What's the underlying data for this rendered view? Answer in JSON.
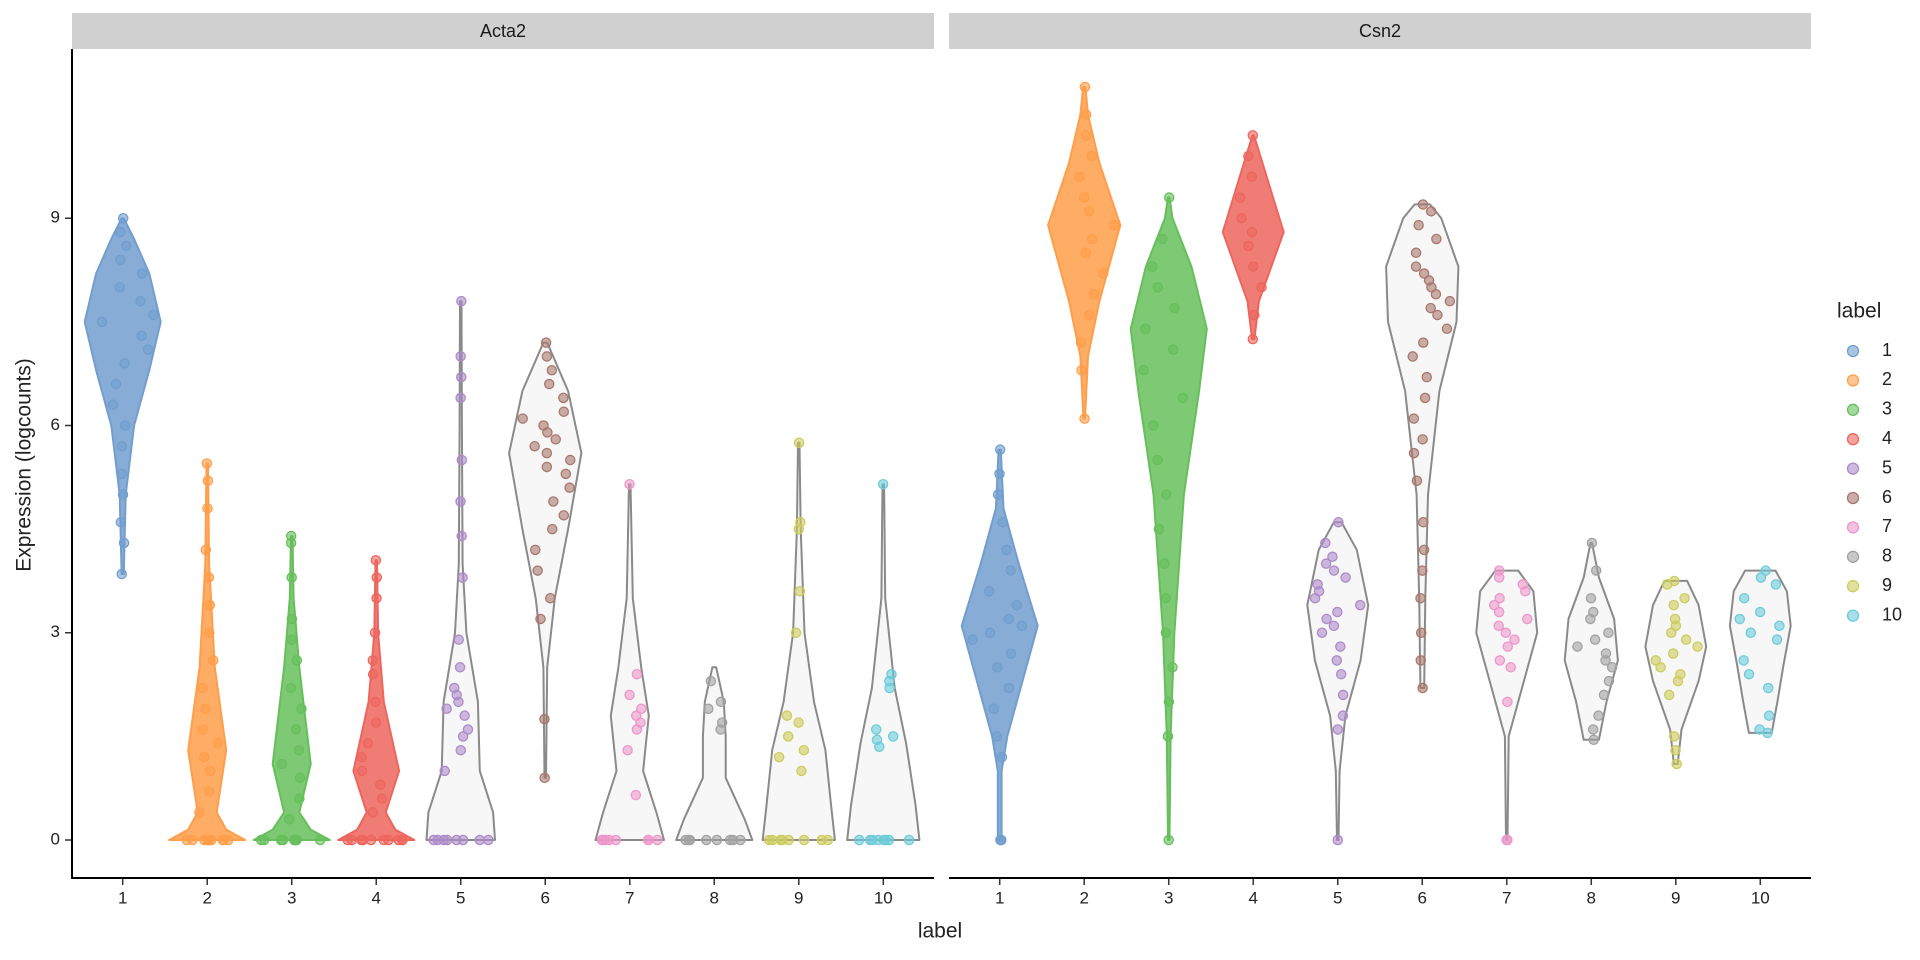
{
  "chart_data": {
    "type": "violin",
    "x_label": "label",
    "y_label": "Expression (logcounts)",
    "legend_title": "label",
    "legend": "right",
    "categories": [
      "1",
      "2",
      "3",
      "4",
      "5",
      "6",
      "7",
      "8",
      "9",
      "10"
    ],
    "colors": [
      "#729ECE",
      "#FF9E4A",
      "#67BF5C",
      "#ED665D",
      "#AD8BC9",
      "#A8786E",
      "#ED97CA",
      "#A2A2A2",
      "#CDCC5D",
      "#6DCCDA"
    ],
    "ylim": [
      -0.55,
      11.45
    ],
    "yticks": [
      0,
      3,
      6,
      9
    ],
    "facets": [
      {
        "title": "Acta2",
        "groups": [
          {
            "filled": true,
            "profile_y": [
              3.85,
              5,
              6,
              6.8,
              7.5,
              8.2,
              8.7,
              9.0
            ],
            "profile_w": [
              0.03,
              0.08,
              0.3,
              0.7,
              1,
              0.7,
              0.3,
              0.03
            ],
            "points": [
              3.85,
              4.3,
              4.6,
              5.0,
              5.3,
              5.7,
              6.0,
              6.3,
              6.6,
              6.9,
              7.1,
              7.3,
              7.5,
              7.6,
              7.8,
              8.0,
              8.2,
              8.4,
              8.6,
              8.8,
              9.0
            ]
          },
          {
            "filled": true,
            "profile_y": [
              0,
              0.15,
              0.4,
              1.3,
              2.5,
              4,
              5.45
            ],
            "profile_w": [
              1,
              0.5,
              0.25,
              0.5,
              0.2,
              0.05,
              0.02
            ],
            "points": [
              0,
              0,
              0,
              0,
              0,
              0,
              0,
              0,
              0,
              0,
              0.4,
              0.7,
              1.0,
              1.2,
              1.4,
              1.6,
              1.9,
              2.2,
              2.6,
              3.0,
              3.4,
              3.8,
              4.2,
              4.8,
              5.2,
              5.45
            ]
          },
          {
            "filled": true,
            "profile_y": [
              0,
              0.15,
              0.4,
              1.1,
              2.5,
              3.5,
              4.4
            ],
            "profile_w": [
              1,
              0.5,
              0.2,
              0.5,
              0.2,
              0.05,
              0.02
            ],
            "points": [
              0,
              0,
              0,
              0,
              0,
              0,
              0,
              0,
              0,
              0,
              0.3,
              0.6,
              0.9,
              1.1,
              1.3,
              1.6,
              1.9,
              2.2,
              2.6,
              2.9,
              3.2,
              3.8,
              4.3,
              4.4
            ]
          },
          {
            "filled": true,
            "profile_y": [
              0,
              0.15,
              0.4,
              1.0,
              2,
              3,
              4.05
            ],
            "profile_w": [
              1,
              0.5,
              0.25,
              0.6,
              0.2,
              0.05,
              0.02
            ],
            "points": [
              0,
              0,
              0,
              0,
              0,
              0,
              0,
              0,
              0,
              0,
              0.4,
              0.6,
              0.8,
              1.0,
              1.2,
              1.4,
              1.7,
              2.0,
              2.4,
              2.6,
              3.0,
              3.5,
              3.8,
              4.05
            ]
          },
          {
            "filled": false,
            "profile_y": [
              0,
              0.4,
              1,
              2,
              3,
              4,
              6,
              7.8
            ],
            "profile_w": [
              0.9,
              0.85,
              0.5,
              0.45,
              0.15,
              0.05,
              0.03,
              0.02
            ],
            "points": [
              0,
              0,
              0,
              0,
              0,
              0,
              0,
              0,
              1.0,
              1.3,
              1.5,
              1.6,
              1.8,
              1.9,
              2.0,
              2.1,
              2.2,
              2.5,
              2.9,
              3.8,
              4.4,
              4.9,
              5.5,
              6.4,
              6.7,
              7.0,
              7.8
            ]
          },
          {
            "filled": false,
            "profile_y": [
              0.9,
              2.5,
              3.5,
              4.5,
              5.6,
              6.5,
              7.2
            ],
            "profile_w": [
              0.02,
              0.05,
              0.25,
              0.6,
              0.95,
              0.6,
              0.05
            ],
            "points": [
              0.9,
              1.75,
              3.2,
              3.5,
              3.9,
              4.2,
              4.5,
              4.7,
              4.9,
              5.1,
              5.3,
              5.4,
              5.5,
              5.6,
              5.7,
              5.8,
              5.9,
              6.0,
              6.1,
              6.2,
              6.4,
              6.6,
              6.8,
              7.0,
              7.2
            ]
          },
          {
            "filled": false,
            "profile_y": [
              0,
              0.4,
              1.0,
              1.8,
              2.5,
              3.5,
              5.15
            ],
            "profile_w": [
              0.9,
              0.7,
              0.35,
              0.5,
              0.3,
              0.08,
              0.02
            ],
            "points": [
              0,
              0,
              0,
              0,
              0,
              0,
              0,
              0,
              0.65,
              1.3,
              1.6,
              1.7,
              1.8,
              1.9,
              2.1,
              2.4,
              5.15
            ]
          },
          {
            "filled": false,
            "profile_y": [
              0,
              0.3,
              0.9,
              1.5,
              2,
              2.5
            ],
            "profile_w": [
              1,
              0.8,
              0.3,
              0.3,
              0.25,
              0.05
            ],
            "points": [
              0,
              0,
              0,
              0,
              0,
              0,
              0,
              0,
              1.6,
              1.7,
              1.9,
              2.0,
              2.3
            ]
          },
          {
            "filled": false,
            "profile_y": [
              0,
              0.5,
              1.3,
              2,
              3,
              4.5,
              5.75
            ],
            "profile_w": [
              0.95,
              0.85,
              0.7,
              0.4,
              0.15,
              0.05,
              0.02
            ],
            "points": [
              0,
              0,
              0,
              0,
              0,
              0,
              0,
              0,
              1.0,
              1.2,
              1.3,
              1.5,
              1.7,
              1.8,
              3.0,
              3.6,
              4.5,
              4.6,
              5.75
            ]
          },
          {
            "filled": false,
            "profile_y": [
              0,
              0.5,
              1.4,
              2.2,
              3.5,
              5.15
            ],
            "profile_w": [
              0.95,
              0.85,
              0.6,
              0.3,
              0.05,
              0.02
            ],
            "points": [
              0,
              0,
              0,
              0,
              0,
              0,
              0,
              0,
              1.35,
              1.45,
              1.5,
              1.6,
              2.2,
              2.3,
              2.4,
              5.15
            ]
          }
        ]
      },
      {
        "title": "Csn2",
        "groups": [
          {
            "filled": true,
            "profile_y": [
              0,
              1,
              1.5,
              2.3,
              3.1,
              4,
              4.8,
              5.65
            ],
            "profile_w": [
              0.05,
              0.05,
              0.2,
              0.6,
              1,
              0.5,
              0.1,
              0.03
            ],
            "points": [
              0,
              0,
              0,
              1.2,
              1.5,
              1.9,
              2.2,
              2.5,
              2.7,
              2.9,
              3.0,
              3.1,
              3.2,
              3.4,
              3.6,
              3.9,
              4.2,
              4.6,
              5.0,
              5.3,
              5.65
            ]
          },
          {
            "filled": true,
            "profile_y": [
              6.1,
              7,
              7.8,
              8.9,
              9.8,
              10.5,
              10.9
            ],
            "profile_w": [
              0.02,
              0.1,
              0.4,
              0.95,
              0.4,
              0.1,
              0.03
            ],
            "points": [
              6.1,
              6.8,
              7.2,
              7.6,
              7.9,
              8.2,
              8.5,
              8.7,
              8.9,
              9.1,
              9.3,
              9.6,
              9.9,
              10.2,
              10.5,
              10.9
            ]
          },
          {
            "filled": true,
            "profile_y": [
              0,
              1.5,
              3,
              5,
              6.5,
              7.4,
              8.3,
              9,
              9.3
            ],
            "profile_w": [
              0.02,
              0.05,
              0.15,
              0.4,
              0.8,
              1,
              0.6,
              0.1,
              0.02
            ],
            "points": [
              0,
              1.5,
              2.0,
              2.5,
              3.0,
              3.5,
              4.0,
              4.5,
              5.0,
              5.5,
              6.0,
              6.4,
              6.8,
              7.1,
              7.4,
              7.7,
              8.0,
              8.3,
              8.7,
              9.3
            ]
          },
          {
            "filled": true,
            "profile_y": [
              7.25,
              7.8,
              8.8,
              9.7,
              10.2
            ],
            "profile_w": [
              0.03,
              0.15,
              0.8,
              0.3,
              0.02
            ],
            "points": [
              7.25,
              7.6,
              8.0,
              8.3,
              8.6,
              8.8,
              9.0,
              9.3,
              9.6,
              9.9,
              10.2
            ]
          },
          {
            "filled": false,
            "profile_y": [
              0,
              1,
              1.8,
              2.6,
              3.4,
              4.2,
              4.6
            ],
            "profile_w": [
              0.02,
              0.05,
              0.2,
              0.6,
              0.8,
              0.5,
              0.1
            ],
            "points": [
              0,
              1.6,
              1.8,
              2.1,
              2.4,
              2.6,
              2.8,
              3.0,
              3.1,
              3.2,
              3.3,
              3.4,
              3.5,
              3.6,
              3.7,
              3.8,
              3.9,
              4.0,
              4.1,
              4.3,
              4.6
            ]
          },
          {
            "filled": false,
            "profile_y": [
              2.2,
              3.5,
              5,
              6.5,
              7.5,
              8.3,
              9.0,
              9.2
            ],
            "profile_w": [
              0.05,
              0.08,
              0.15,
              0.45,
              0.9,
              0.95,
              0.5,
              0.2
            ],
            "points": [
              2.2,
              2.6,
              3.0,
              3.5,
              3.9,
              4.2,
              4.6,
              5.2,
              5.6,
              5.8,
              6.1,
              6.4,
              6.7,
              7.0,
              7.2,
              7.4,
              7.6,
              7.7,
              7.8,
              7.9,
              8.0,
              8.1,
              8.2,
              8.3,
              8.5,
              8.7,
              8.9,
              9.1,
              9.2
            ]
          },
          {
            "filled": false,
            "profile_y": [
              0,
              1.5,
              2.2,
              3,
              3.6,
              3.9
            ],
            "profile_w": [
              0.02,
              0.05,
              0.4,
              0.8,
              0.7,
              0.3
            ],
            "points": [
              0,
              0,
              2.0,
              2.5,
              2.6,
              2.8,
              2.9,
              3.0,
              3.1,
              3.2,
              3.3,
              3.4,
              3.5,
              3.6,
              3.7,
              3.8,
              3.9
            ]
          },
          {
            "filled": false,
            "profile_y": [
              1.45,
              2,
              2.6,
              3.2,
              3.8,
              4.3
            ],
            "profile_w": [
              0.2,
              0.4,
              0.7,
              0.6,
              0.2,
              0.02
            ],
            "points": [
              1.45,
              1.6,
              1.8,
              2.1,
              2.3,
              2.5,
              2.6,
              2.7,
              2.8,
              2.9,
              3.0,
              3.2,
              3.3,
              3.5,
              3.9,
              4.3
            ]
          },
          {
            "filled": false,
            "profile_y": [
              1.1,
              1.6,
              2.3,
              2.8,
              3.4,
              3.75
            ],
            "profile_w": [
              0.05,
              0.15,
              0.6,
              0.8,
              0.6,
              0.3
            ],
            "points": [
              1.1,
              1.3,
              1.5,
              2.1,
              2.3,
              2.4,
              2.5,
              2.6,
              2.7,
              2.8,
              2.9,
              3.0,
              3.1,
              3.2,
              3.4,
              3.5,
              3.7,
              3.75
            ]
          },
          {
            "filled": false,
            "profile_y": [
              1.55,
              2,
              2.5,
              3.1,
              3.6,
              3.9
            ],
            "profile_w": [
              0.3,
              0.45,
              0.6,
              0.8,
              0.7,
              0.4
            ],
            "points": [
              1.55,
              1.6,
              1.8,
              2.2,
              2.4,
              2.6,
              2.9,
              3.0,
              3.1,
              3.2,
              3.3,
              3.5,
              3.7,
              3.8,
              3.9
            ]
          }
        ]
      }
    ]
  }
}
